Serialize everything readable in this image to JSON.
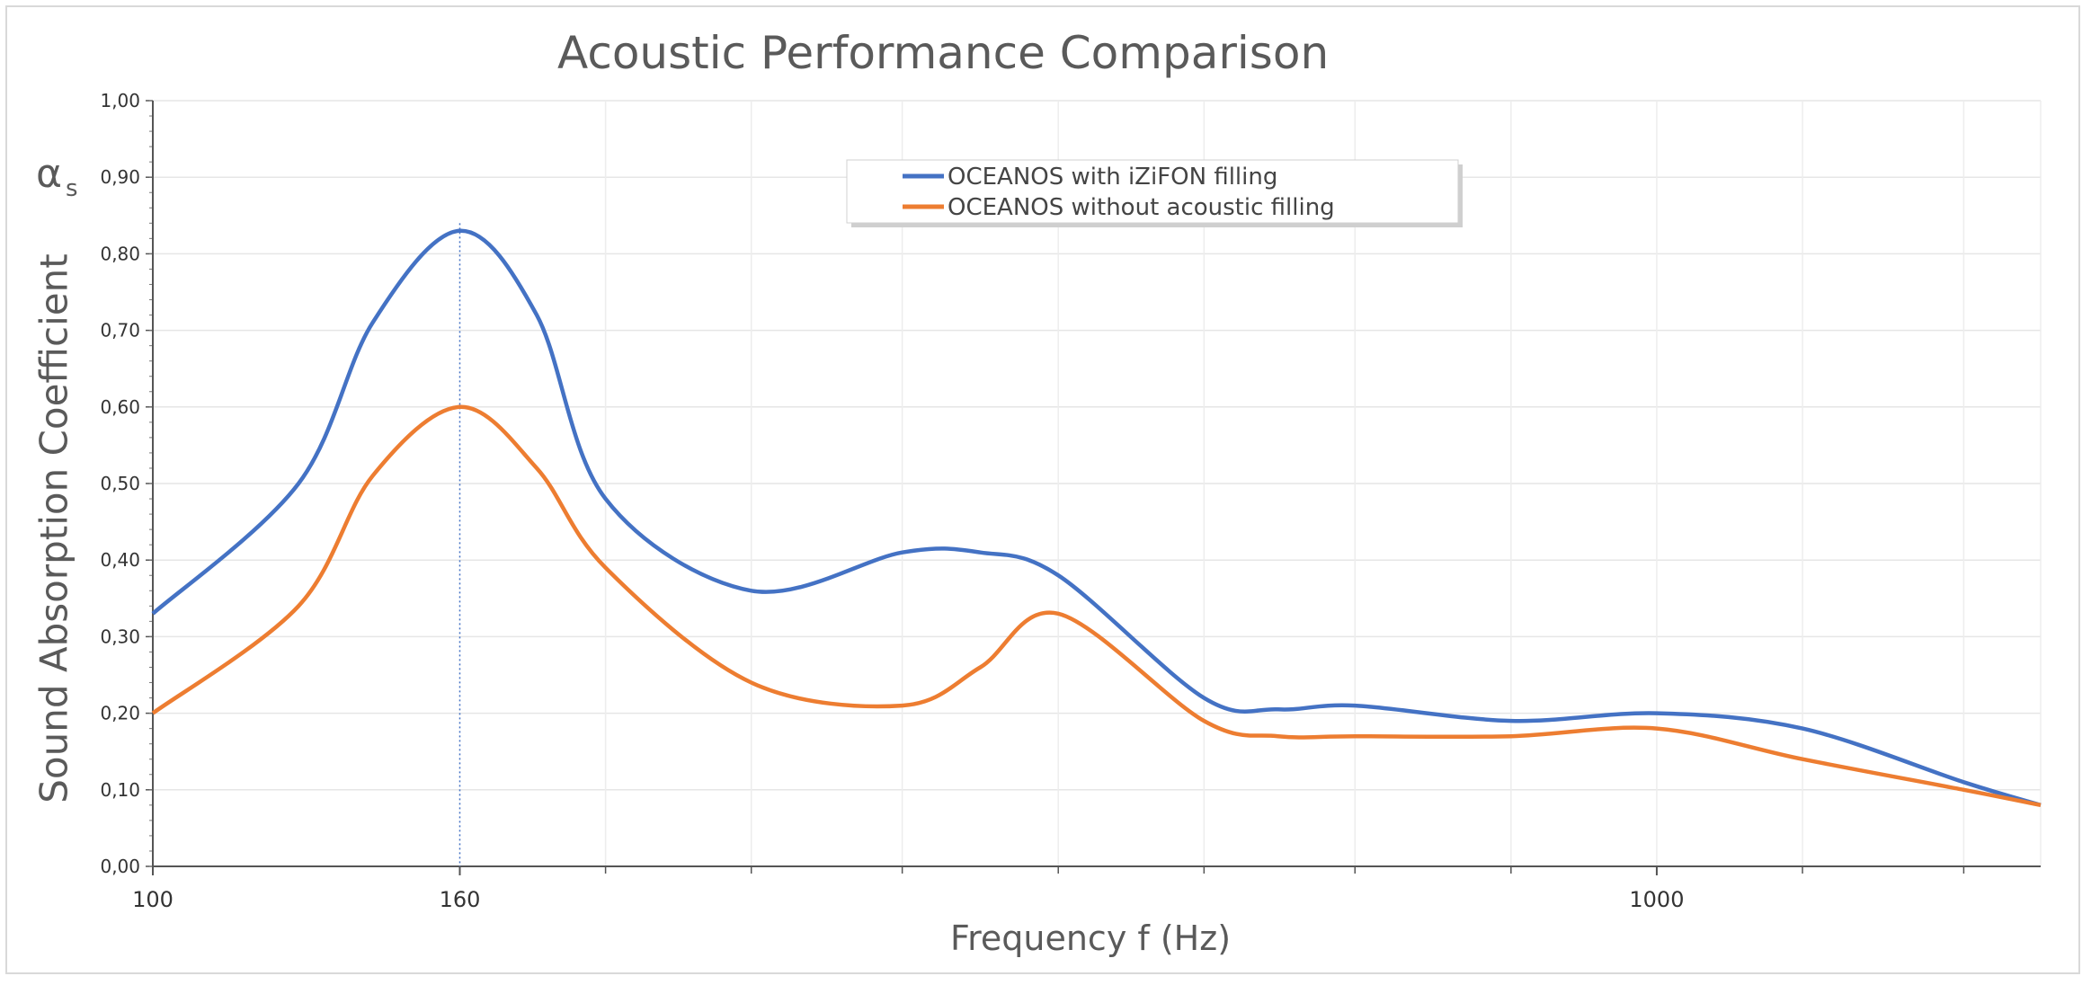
{
  "chart_data": {
    "type": "line",
    "title": "Acoustic Performance Comparison",
    "ylabel": "Sound Absorption Coefficient",
    "ysymbol": "α",
    "ysymbol_sub": "s",
    "xlabel": "Frequency f (Hz)",
    "x_scale": "log",
    "xlim": [
      100,
      1800
    ],
    "ylim": [
      0,
      1
    ],
    "y_ticks": [
      "0,00",
      "0,10",
      "0,20",
      "0,30",
      "0,40",
      "0,50",
      "0,60",
      "0,70",
      "0,80",
      "0,90",
      "1,00"
    ],
    "x_tick_labels": [
      {
        "value": 100,
        "label": "100"
      },
      {
        "value": 160,
        "label": "160"
      },
      {
        "value": 1000,
        "label": "1000"
      }
    ],
    "x_grid": [
      200,
      250,
      315,
      400,
      500,
      630,
      800,
      1000,
      1250,
      1600
    ],
    "highlight_x": 160,
    "legend": {
      "placement": "top-center"
    },
    "series": [
      {
        "name": "OCEANOS with iZiFON filling",
        "color": "#4472c4",
        "x": [
          100,
          125,
          140,
          160,
          180,
          200,
          250,
          315,
          355,
          400,
          500,
          560,
          630,
          800,
          1000,
          1250,
          1600,
          1800
        ],
        "y": [
          0.33,
          0.5,
          0.71,
          0.83,
          0.72,
          0.48,
          0.36,
          0.41,
          0.41,
          0.38,
          0.22,
          0.205,
          0.21,
          0.19,
          0.2,
          0.18,
          0.11,
          0.08
        ]
      },
      {
        "name": "OCEANOS without acoustic filling",
        "color": "#ed7d31",
        "x": [
          100,
          125,
          140,
          160,
          180,
          200,
          250,
          315,
          355,
          400,
          500,
          560,
          630,
          800,
          1000,
          1250,
          1600,
          1800
        ],
        "y": [
          0.2,
          0.34,
          0.51,
          0.6,
          0.52,
          0.39,
          0.24,
          0.21,
          0.26,
          0.33,
          0.19,
          0.17,
          0.17,
          0.17,
          0.18,
          0.14,
          0.1,
          0.08
        ]
      }
    ]
  }
}
